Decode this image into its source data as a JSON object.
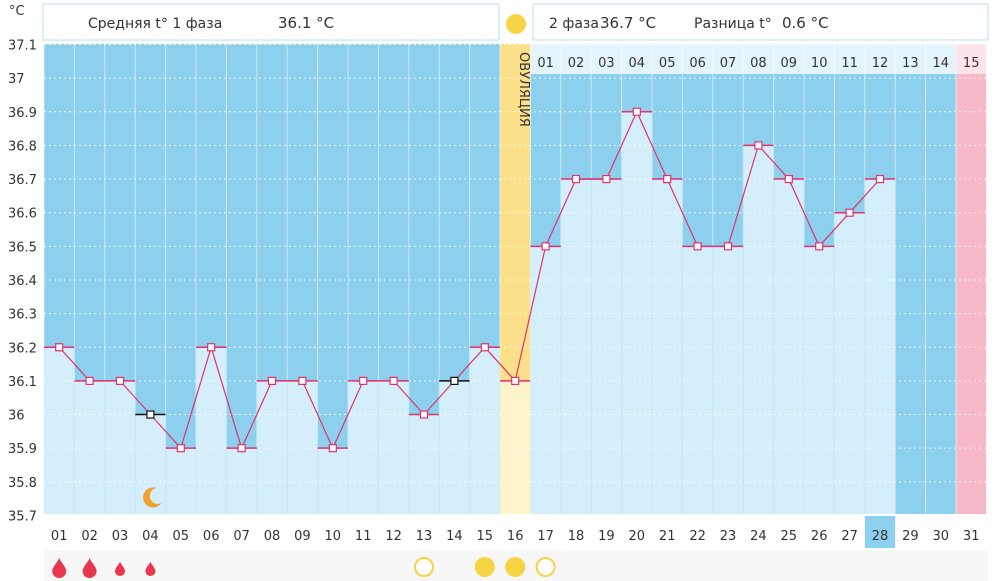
{
  "header": {
    "unit_label": "°C",
    "phase1_label": "Средняя t° 1 фаза",
    "phase1_value": "36.1 °C",
    "phase2_label": "2 фаза",
    "phase2_value": "36.7 °C",
    "diff_label": "Разница t°",
    "diff_value": "0.6 °C"
  },
  "colors": {
    "phase_bg": "#8dd0ee",
    "bar": "#d5eefb",
    "ovulation_band": "#fce089",
    "ovulation_bar": "#fdf4cc",
    "line": "#e0336e",
    "marker": "#e0336e",
    "pink_column": "#f7b8c7",
    "sun": "#f7d443",
    "drop": "#e8364f",
    "moon": "#f0a030",
    "highlight_day": "#8dd0ee"
  },
  "chart_data": {
    "type": "bar",
    "title": "",
    "xlabel": "",
    "ylabel": "°C",
    "ylim": [
      35.7,
      37.1
    ],
    "yticks": [
      "35.7",
      "35.8",
      "35.9",
      "36",
      "36.1",
      "36.2",
      "36.3",
      "36.4",
      "36.5",
      "36.6",
      "36.7",
      "36.8",
      "36.9",
      "37",
      "37.1"
    ],
    "categories": [
      "01",
      "02",
      "03",
      "04",
      "05",
      "06",
      "07",
      "08",
      "09",
      "10",
      "11",
      "12",
      "13",
      "14",
      "15",
      "16",
      "17",
      "18",
      "19",
      "20",
      "21",
      "22",
      "23",
      "24",
      "25",
      "26",
      "27",
      "28",
      "29",
      "30",
      "31"
    ],
    "values": [
      36.2,
      36.1,
      36.1,
      36.0,
      35.9,
      36.2,
      35.9,
      36.1,
      36.1,
      35.9,
      36.1,
      36.1,
      36.0,
      36.1,
      36.2,
      36.1,
      36.5,
      36.7,
      36.7,
      36.9,
      36.7,
      36.5,
      36.5,
      36.8,
      36.7,
      36.5,
      36.6,
      36.7,
      null,
      null,
      null
    ],
    "excluded_days": [
      "04",
      "14"
    ],
    "ovulation_day": "16",
    "ovulation_label": "ОВУЛЯЦИЯ",
    "luteal_day_labels": [
      "01",
      "02",
      "03",
      "04",
      "05",
      "06",
      "07",
      "08",
      "09",
      "10",
      "11",
      "12",
      "13",
      "14",
      "15"
    ],
    "highlighted_day": "28",
    "pink_day": "31",
    "symbols": [
      {
        "day": "01",
        "symbol": "drop-large"
      },
      {
        "day": "02",
        "symbol": "drop-large"
      },
      {
        "day": "03",
        "symbol": "drop-small"
      },
      {
        "day": "04",
        "symbol": "drop-small"
      },
      {
        "day": "04",
        "symbol": "moon"
      },
      {
        "day": "13",
        "symbol": "circle-outline"
      },
      {
        "day": "15",
        "symbol": "circle-filled"
      },
      {
        "day": "16",
        "symbol": "circle-filled"
      },
      {
        "day": "17",
        "symbol": "circle-outline"
      }
    ]
  }
}
